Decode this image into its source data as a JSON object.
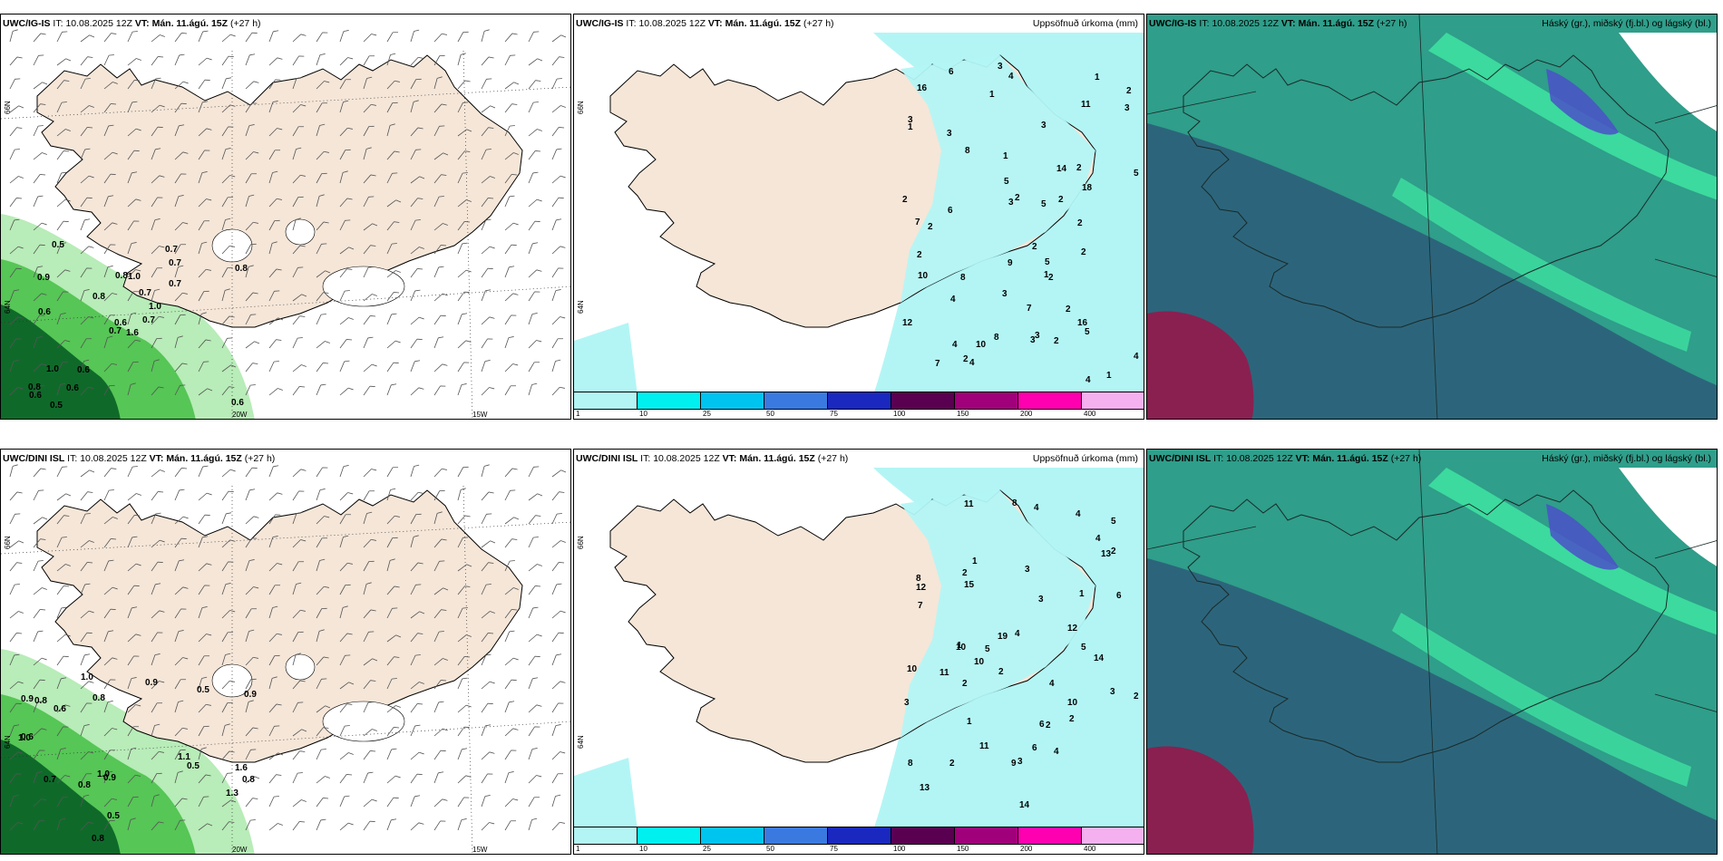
{
  "panels": [
    {
      "model": "UWC/IG-IS",
      "it_label": "IT:",
      "it_value": "10.08.2025 12Z",
      "vt_label": "VT:",
      "vt_value": "Mán. 11.ágú. 15Z",
      "lead": "(+27 h)",
      "right_title": "",
      "lat_labels": [
        "66N",
        "64N"
      ],
      "lon_labels": [
        "20W",
        "15W"
      ],
      "values": [
        "1.6",
        "0.9",
        "0.6",
        "0.8",
        "1.0",
        "0.6",
        "0.7",
        "1.0",
        "0.7",
        "0.7",
        "0.5",
        "0.6",
        "0.6",
        "0.8",
        "0.7",
        "0.7",
        "0.5",
        "0.8",
        "0.7",
        "1.0",
        "0.8",
        "0.6",
        "0.6"
      ]
    },
    {
      "model": "UWC/IG-IS",
      "it_label": "IT:",
      "it_value": "10.08.2025 12Z",
      "vt_label": "VT:",
      "vt_value": "Mán. 11.ágú. 15Z",
      "lead": "(+27 h)",
      "right_title": "Uppsöfnuð úrkoma (mm)",
      "lat_labels": [
        "66N",
        "64N"
      ],
      "colorbar_ticks": [
        "1",
        "10",
        "25",
        "50",
        "75",
        "100",
        "150",
        "200",
        "400"
      ],
      "colorbar_colors": [
        "#b3f5f5",
        "#00f0f0",
        "#00c4f0",
        "#3a7ae0",
        "#1a28c0",
        "#5a0050",
        "#a0007a",
        "#ff00b0",
        "#f5b0f0"
      ],
      "values": [
        "2",
        "4",
        "2",
        "2",
        "3",
        "1",
        "2",
        "3",
        "1",
        "1",
        "2",
        "2",
        "3",
        "1",
        "3",
        "4",
        "3",
        "7",
        "2",
        "3",
        "2",
        "5",
        "3",
        "5",
        "4",
        "3",
        "5",
        "6",
        "4",
        "3",
        "2",
        "4",
        "5",
        "7",
        "2",
        "10",
        "18",
        "16",
        "10",
        "8",
        "7",
        "2",
        "4",
        "5",
        "9",
        "8",
        "11",
        "12",
        "8",
        "6",
        "14",
        "16",
        "2",
        "2",
        "2",
        "1",
        "1"
      ]
    },
    {
      "model": "UWC/IG-IS",
      "it_label": "IT:",
      "it_value": "10.08.2025 12Z",
      "vt_label": "VT:",
      "vt_value": "Mán. 11.ágú. 15Z",
      "lead": "(+27 h)",
      "right_title": "Háský (gr.), miðský (fj.bl.) og lágský (bl.)"
    },
    {
      "model": "UWC/DINI ISL",
      "it_label": "IT:",
      "it_value": "10.08.2025 12Z",
      "vt_label": "VT:",
      "vt_value": "Mán. 11.ágú. 15Z",
      "lead": "(+27 h)",
      "right_title": "",
      "lat_labels": [
        "66N",
        "64N"
      ],
      "lon_labels": [
        "20W",
        "15W"
      ],
      "values": [
        "0.9",
        "0.7",
        "0.8",
        "1.1",
        "1.3",
        "0.6",
        "1.0",
        "0.5",
        "1.6",
        "0.8",
        "0.8",
        "0.5",
        "0.9",
        "0.6",
        "0.5",
        "0.8",
        "1.0",
        "1.0",
        "0.9",
        "0.8",
        "0.9"
      ]
    },
    {
      "model": "UWC/DINI ISL",
      "it_label": "IT:",
      "it_value": "10.08.2025 12Z",
      "vt_label": "VT:",
      "vt_value": "Mán. 11.ágú. 15Z",
      "lead": "(+27 h)",
      "right_title": "Uppsöfnuð úrkoma (mm)",
      "lat_labels": [
        "66N",
        "64N"
      ],
      "colorbar_ticks": [
        "1",
        "10",
        "25",
        "50",
        "75",
        "100",
        "150",
        "200",
        "400"
      ],
      "colorbar_colors": [
        "#b3f5f5",
        "#00f0f0",
        "#00c4f0",
        "#3a7ae0",
        "#1a28c0",
        "#5a0050",
        "#a0007a",
        "#ff00b0",
        "#f5b0f0"
      ],
      "values": [
        "4",
        "4",
        "4",
        "6",
        "5",
        "4",
        "3",
        "5",
        "2",
        "2",
        "2",
        "1",
        "1",
        "2",
        "3",
        "4",
        "5",
        "6",
        "3",
        "2",
        "4",
        "3",
        "13",
        "11",
        "7",
        "6",
        "8",
        "9",
        "10",
        "11",
        "19",
        "14",
        "8",
        "10",
        "11",
        "12",
        "15",
        "12",
        "14",
        "13",
        "8",
        "10",
        "10",
        "2",
        "3",
        "2",
        "1",
        "1",
        "2"
      ]
    },
    {
      "model": "UWC/DINI ISL",
      "it_label": "IT:",
      "it_value": "10.08.2025 12Z",
      "vt_label": "VT:",
      "vt_value": "Mán. 11.ágú. 15Z",
      "lead": "(+27 h)",
      "right_title": "Háský (gr.), miðský (fj.bl.) og lágský (bl.)"
    }
  ],
  "colors": {
    "land": "#f5e6d8",
    "precip_light": "#b3f5f5",
    "wind_green_light": "#b8ecb8",
    "wind_green_mid": "#56c656",
    "wind_green_dark": "#0f6a2a",
    "cloud_teal": "#2f9e8a",
    "cloud_dark": "#2b5a78",
    "cloud_maroon": "#8a2050",
    "cloud_band": "#3ee0a0"
  }
}
